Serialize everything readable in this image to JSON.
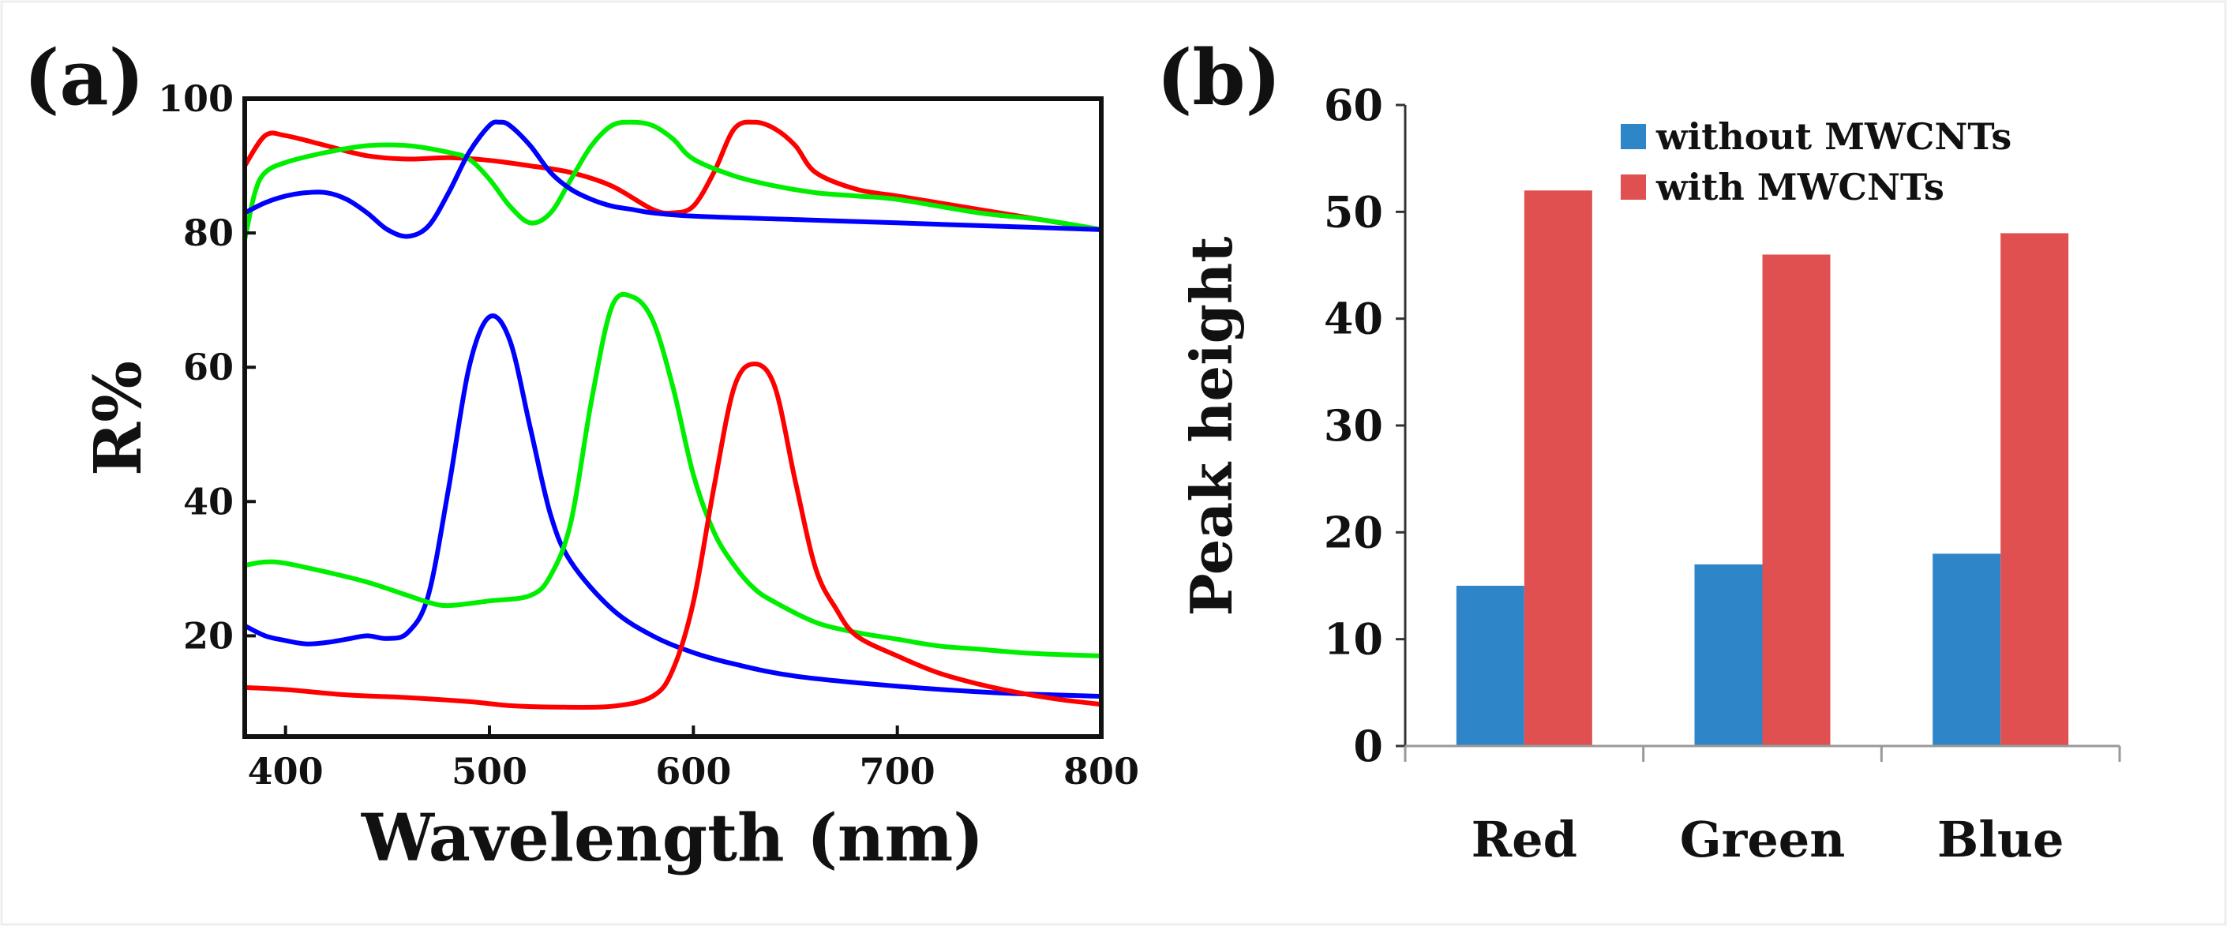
{
  "chart_data": [
    {
      "panel": "(a)",
      "type": "line",
      "xlabel": "Wavelength (nm)",
      "ylabel": "R%",
      "xlim": [
        380,
        800
      ],
      "ylim": [
        5,
        100
      ],
      "x_ticks": [
        400,
        500,
        600,
        700,
        800
      ],
      "y_ticks": [
        20,
        40,
        60,
        80,
        100
      ],
      "grid": false,
      "series": [
        {
          "name": "red-top",
          "color": "#ff0000",
          "x": [
            380,
            390,
            400,
            420,
            440,
            460,
            480,
            500,
            520,
            540,
            560,
            580,
            590,
            600,
            610,
            620,
            630,
            640,
            650,
            660,
            680,
            700,
            720,
            740,
            760,
            780,
            800
          ],
          "y": [
            90,
            94.5,
            94.5,
            93,
            91.5,
            91,
            91.2,
            90.8,
            90,
            89,
            87,
            83.5,
            83,
            84,
            89,
            95.5,
            96.5,
            95.5,
            93,
            89,
            86.5,
            85.5,
            84.5,
            83.5,
            82.5,
            81.5,
            80.5
          ]
        },
        {
          "name": "green-top",
          "color": "#00ee00",
          "x": [
            380,
            385,
            390,
            400,
            420,
            440,
            460,
            480,
            490,
            500,
            510,
            520,
            530,
            540,
            550,
            560,
            570,
            580,
            590,
            600,
            620,
            640,
            660,
            680,
            700,
            740,
            770,
            800
          ],
          "y": [
            79,
            86,
            89,
            90.5,
            92,
            93,
            93,
            92,
            91,
            88,
            84,
            81.5,
            83,
            88,
            93,
            96,
            96.5,
            96,
            94,
            91,
            88.5,
            87,
            86,
            85.5,
            85,
            83,
            82,
            80.5
          ]
        },
        {
          "name": "blue-top",
          "color": "#0000ff",
          "x": [
            380,
            390,
            400,
            410,
            420,
            430,
            440,
            450,
            460,
            470,
            480,
            490,
            500,
            505,
            510,
            520,
            530,
            540,
            550,
            560,
            570,
            580,
            600,
            650,
            700,
            750,
            800
          ],
          "y": [
            83,
            84.5,
            85.5,
            86,
            86,
            85,
            83,
            80.5,
            79.5,
            81,
            86,
            92,
            96,
            96.5,
            96,
            93,
            89,
            86.5,
            85,
            84,
            83.5,
            83,
            82.5,
            82,
            81.5,
            81,
            80.5
          ]
        },
        {
          "name": "blue-bottom",
          "color": "#0000ff",
          "x": [
            380,
            390,
            400,
            410,
            420,
            430,
            440,
            450,
            460,
            470,
            480,
            490,
            500,
            510,
            520,
            530,
            540,
            560,
            580,
            600,
            620,
            650,
            700,
            750,
            800
          ],
          "y": [
            21.5,
            20,
            19.3,
            18.8,
            19,
            19.5,
            20,
            19.6,
            20.5,
            26,
            42,
            60,
            67.5,
            64,
            51,
            38,
            31,
            24,
            20,
            17.5,
            15.8,
            14,
            12.5,
            11.5,
            11
          ]
        },
        {
          "name": "green-bottom",
          "color": "#00ee00",
          "x": [
            380,
            390,
            400,
            420,
            440,
            460,
            470,
            480,
            500,
            520,
            530,
            540,
            550,
            560,
            570,
            580,
            590,
            600,
            610,
            620,
            630,
            640,
            660,
            680,
            700,
            720,
            740,
            760,
            780,
            800
          ],
          "y": [
            30.5,
            31,
            30.8,
            29.5,
            28,
            26,
            25,
            24.5,
            25.2,
            26,
            29,
            37,
            55,
            69,
            70.5,
            67,
            57,
            44,
            35.5,
            30.5,
            27,
            25,
            22,
            20.5,
            19.5,
            18.5,
            18,
            17.5,
            17.2,
            17
          ]
        },
        {
          "name": "red-bottom",
          "color": "#ff0000",
          "x": [
            380,
            400,
            430,
            460,
            490,
            510,
            530,
            560,
            580,
            590,
            600,
            610,
            620,
            630,
            640,
            650,
            660,
            670,
            680,
            700,
            720,
            740,
            760,
            780,
            800
          ],
          "y": [
            12.3,
            12,
            11.2,
            10.8,
            10.2,
            9.6,
            9.4,
            9.5,
            11,
            15,
            25,
            42,
            57,
            60.5,
            57,
            43,
            30,
            24,
            20,
            17,
            14.5,
            12.8,
            11.5,
            10.5,
            9.8
          ]
        }
      ]
    },
    {
      "panel": "(b)",
      "type": "bar",
      "categories": [
        "Red",
        "Green",
        "Blue"
      ],
      "ylabel": "Peak height",
      "xlabel": "",
      "ylim": [
        0,
        60
      ],
      "y_ticks": [
        0,
        10,
        20,
        30,
        40,
        50,
        60
      ],
      "grid": false,
      "legend_position": "top-right",
      "series": [
        {
          "name": "without MWCNTs",
          "color": "#2e86c8",
          "values": [
            15,
            17,
            18
          ]
        },
        {
          "name": "with MWCNTs",
          "color": "#e05050",
          "values": [
            52,
            46,
            48
          ]
        }
      ]
    }
  ]
}
